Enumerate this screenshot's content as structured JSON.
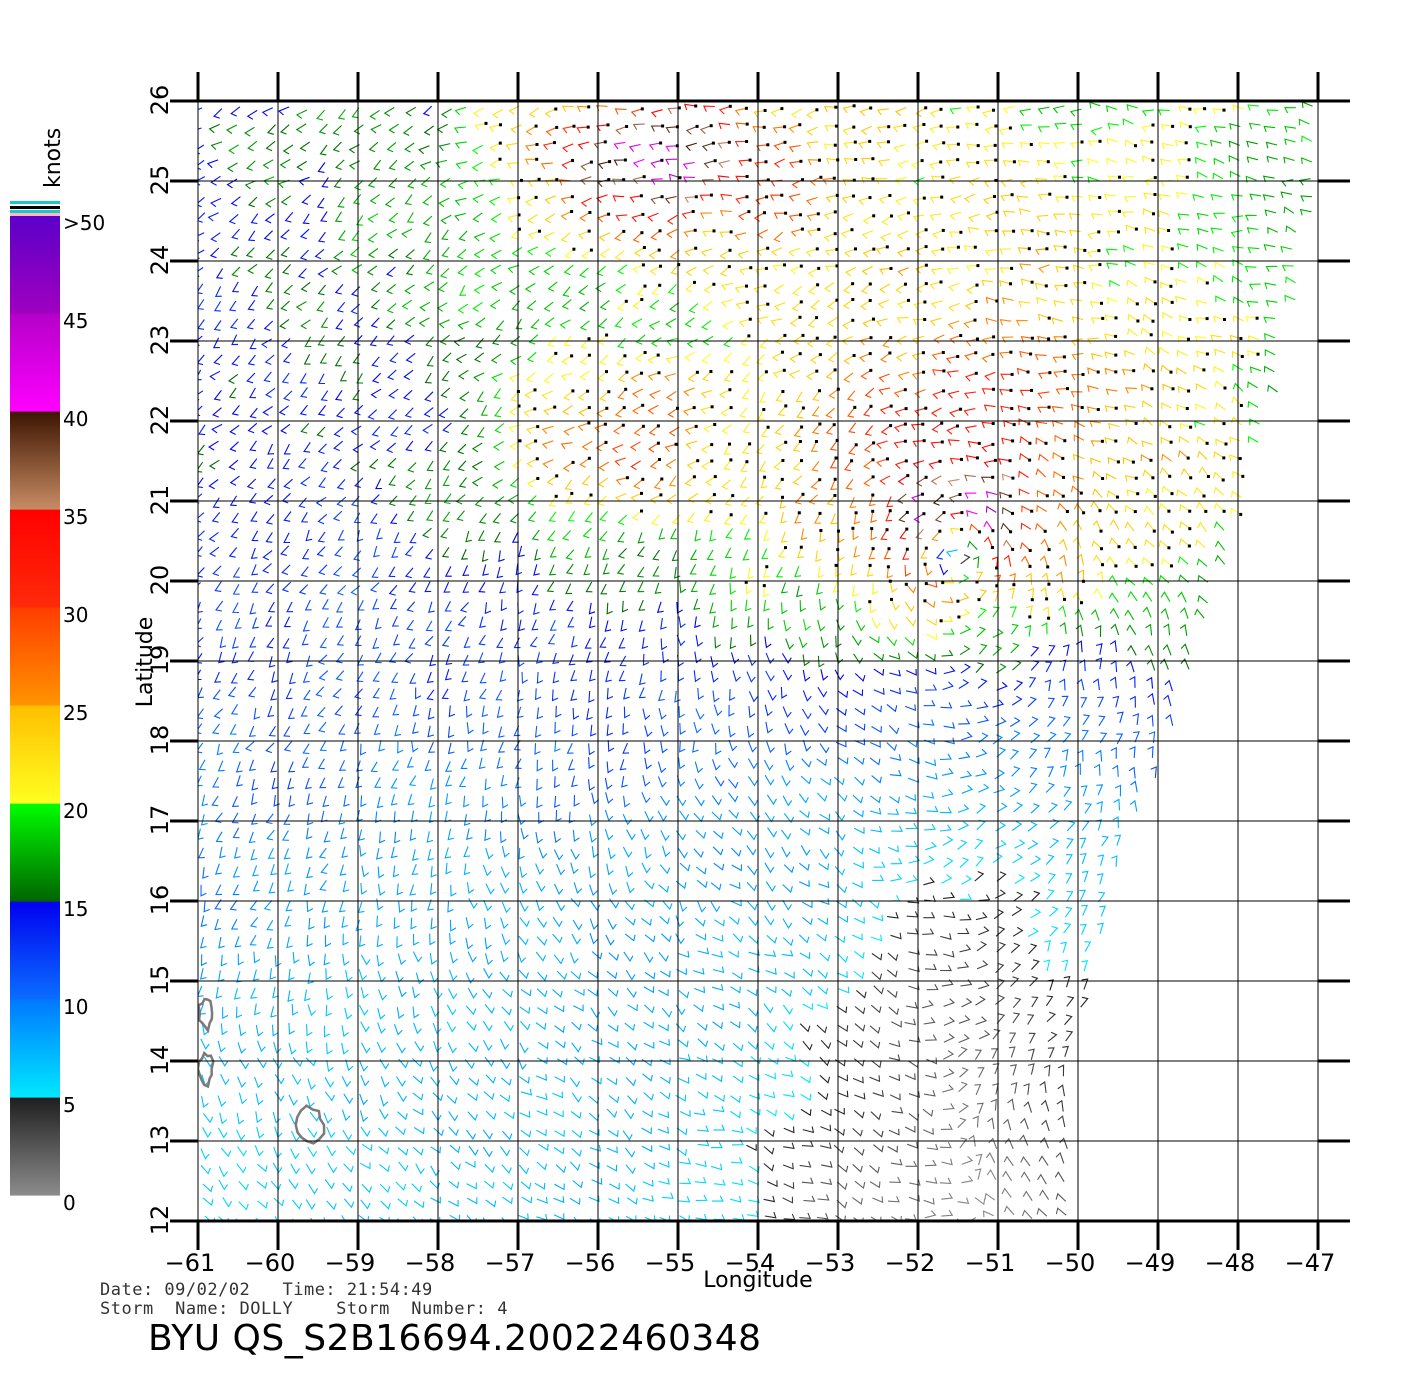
{
  "chart_data": {
    "type": "vector-field",
    "xlabel": "Longitude",
    "ylabel": "Latitude",
    "xlim": [
      -61,
      -47
    ],
    "ylim": [
      12,
      26
    ],
    "x_ticks": [
      "-61",
      "-60",
      "-59",
      "-58",
      "-57",
      "-56",
      "-55",
      "-54",
      "-53",
      "-52",
      "-51",
      "-50",
      "-49",
      "-48",
      "-47"
    ],
    "y_ticks": [
      "12",
      "13",
      "14",
      "15",
      "16",
      "17",
      "18",
      "19",
      "20",
      "21",
      "22",
      "23",
      "24",
      "25",
      "26"
    ],
    "grid": true,
    "swath_east_edge": [
      [
        -50.1,
        14.0
      ],
      [
        -49.6,
        16.0
      ],
      [
        -48.9,
        18.0
      ],
      [
        -48.2,
        20.0
      ],
      [
        -47.6,
        22.0
      ],
      [
        -47.15,
        24.0
      ],
      [
        -46.9,
        26.0
      ]
    ],
    "wind_centers": [
      {
        "lon": -51.5,
        "lat": 20.4,
        "speed_kt": 40,
        "type": "cyclonic"
      },
      {
        "lon": -55.2,
        "lat": 25.3,
        "speed_kt": 30,
        "type": "jet"
      },
      {
        "lon": -55.8,
        "lat": 21.8,
        "speed_kt": 23,
        "type": "jet"
      }
    ],
    "land_outlines": [
      {
        "lon": -60.9,
        "lat": 14.6
      },
      {
        "lon": -60.9,
        "lat": 13.9
      },
      {
        "lon": -59.6,
        "lat": 13.2
      }
    ],
    "colorbar": {
      "title": "knots",
      "labels": [
        ">50",
        "45",
        "40",
        "35",
        "30",
        "25",
        "20",
        "15",
        "10",
        "5",
        "0"
      ],
      "segments": [
        {
          "from": 0,
          "to": 5,
          "colors": [
            "#8c8c8c",
            "#1e1e1e"
          ]
        },
        {
          "from": 5,
          "to": 10,
          "colors": [
            "#00e8ff",
            "#0078ff"
          ]
        },
        {
          "from": 10,
          "to": 15,
          "colors": [
            "#0a6eff",
            "#0000f0"
          ]
        },
        {
          "from": 15,
          "to": 20,
          "colors": [
            "#006400",
            "#00ff00"
          ]
        },
        {
          "from": 20,
          "to": 25,
          "colors": [
            "#ffff20",
            "#ffbe00"
          ]
        },
        {
          "from": 25,
          "to": 30,
          "colors": [
            "#ff9400",
            "#ff3c00"
          ]
        },
        {
          "from": 30,
          "to": 35,
          "colors": [
            "#ff2a0a",
            "#ff0000"
          ]
        },
        {
          "from": 35,
          "to": 40,
          "colors": [
            "#c88c64",
            "#3c1400"
          ]
        },
        {
          "from": 40,
          "to": 45,
          "colors": [
            "#ff00ff",
            "#b400c8"
          ]
        },
        {
          "from": 45,
          "to": 50,
          "colors": [
            "#a000c0",
            "#5a00c8"
          ]
        }
      ]
    }
  },
  "metadata": {
    "line1": "Date: 09/02/02   Time: 21:54:49",
    "line2": "Storm  Name: DOLLY    Storm  Number: 4",
    "product": "BYU  QS_S2B16694.20022460348"
  }
}
